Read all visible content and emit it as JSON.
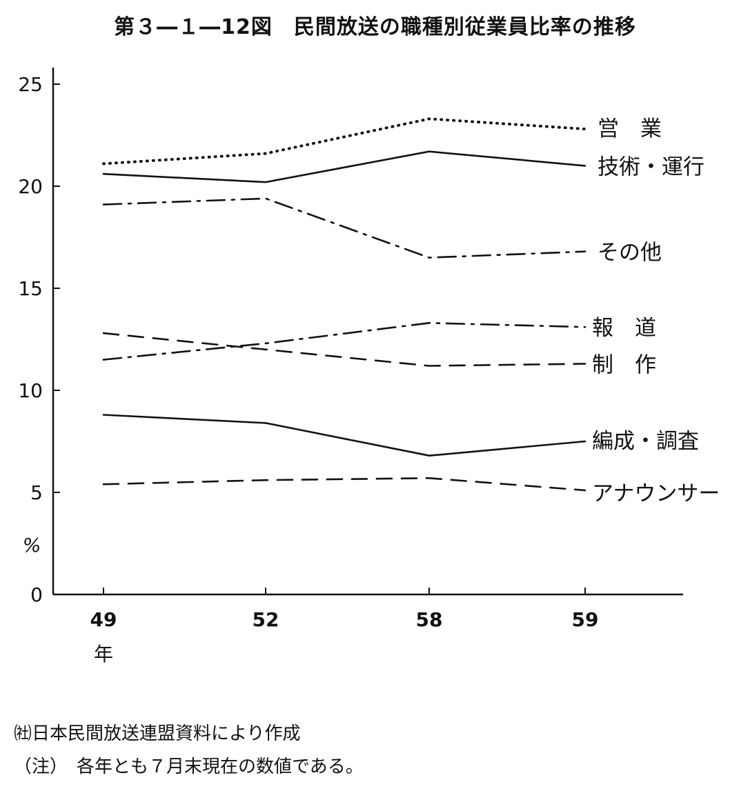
{
  "chart_data": {
    "type": "line",
    "title": "第３―１―12図　民間放送の職種別従業員比率の推移",
    "x": [
      "49",
      "52",
      "58",
      "59"
    ],
    "x_unit": "年",
    "y_unit": "%",
    "ylim": [
      0,
      25
    ],
    "y_ticks": [
      "0",
      "5",
      "10",
      "15",
      "20",
      "25"
    ],
    "grid": false,
    "legend": "labels at right end of each line",
    "series": [
      {
        "name": "営　業",
        "values": [
          21.1,
          21.6,
          23.3,
          22.8
        ],
        "style": "dotted"
      },
      {
        "name": "技術・運行",
        "values": [
          20.6,
          20.2,
          21.7,
          21.0
        ],
        "style": "solid"
      },
      {
        "name": "その他",
        "values": [
          19.1,
          19.4,
          16.5,
          16.8
        ],
        "style": "dash-dot"
      },
      {
        "name": "報　道",
        "values": [
          11.5,
          12.3,
          13.3,
          13.1
        ],
        "style": "dash-dot"
      },
      {
        "name": "制　作",
        "values": [
          12.8,
          12.0,
          11.2,
          11.3
        ],
        "style": "dashed"
      },
      {
        "name": "編成・調査",
        "values": [
          8.8,
          8.4,
          6.8,
          7.5
        ],
        "style": "solid"
      },
      {
        "name": "アナウンサー",
        "values": [
          5.4,
          5.6,
          5.7,
          5.1
        ],
        "style": "dashed"
      }
    ]
  },
  "notes": {
    "source": "㈳日本民間放送連盟資料により作成",
    "note": "（注）　各年とも７月末現在の数値である。"
  }
}
